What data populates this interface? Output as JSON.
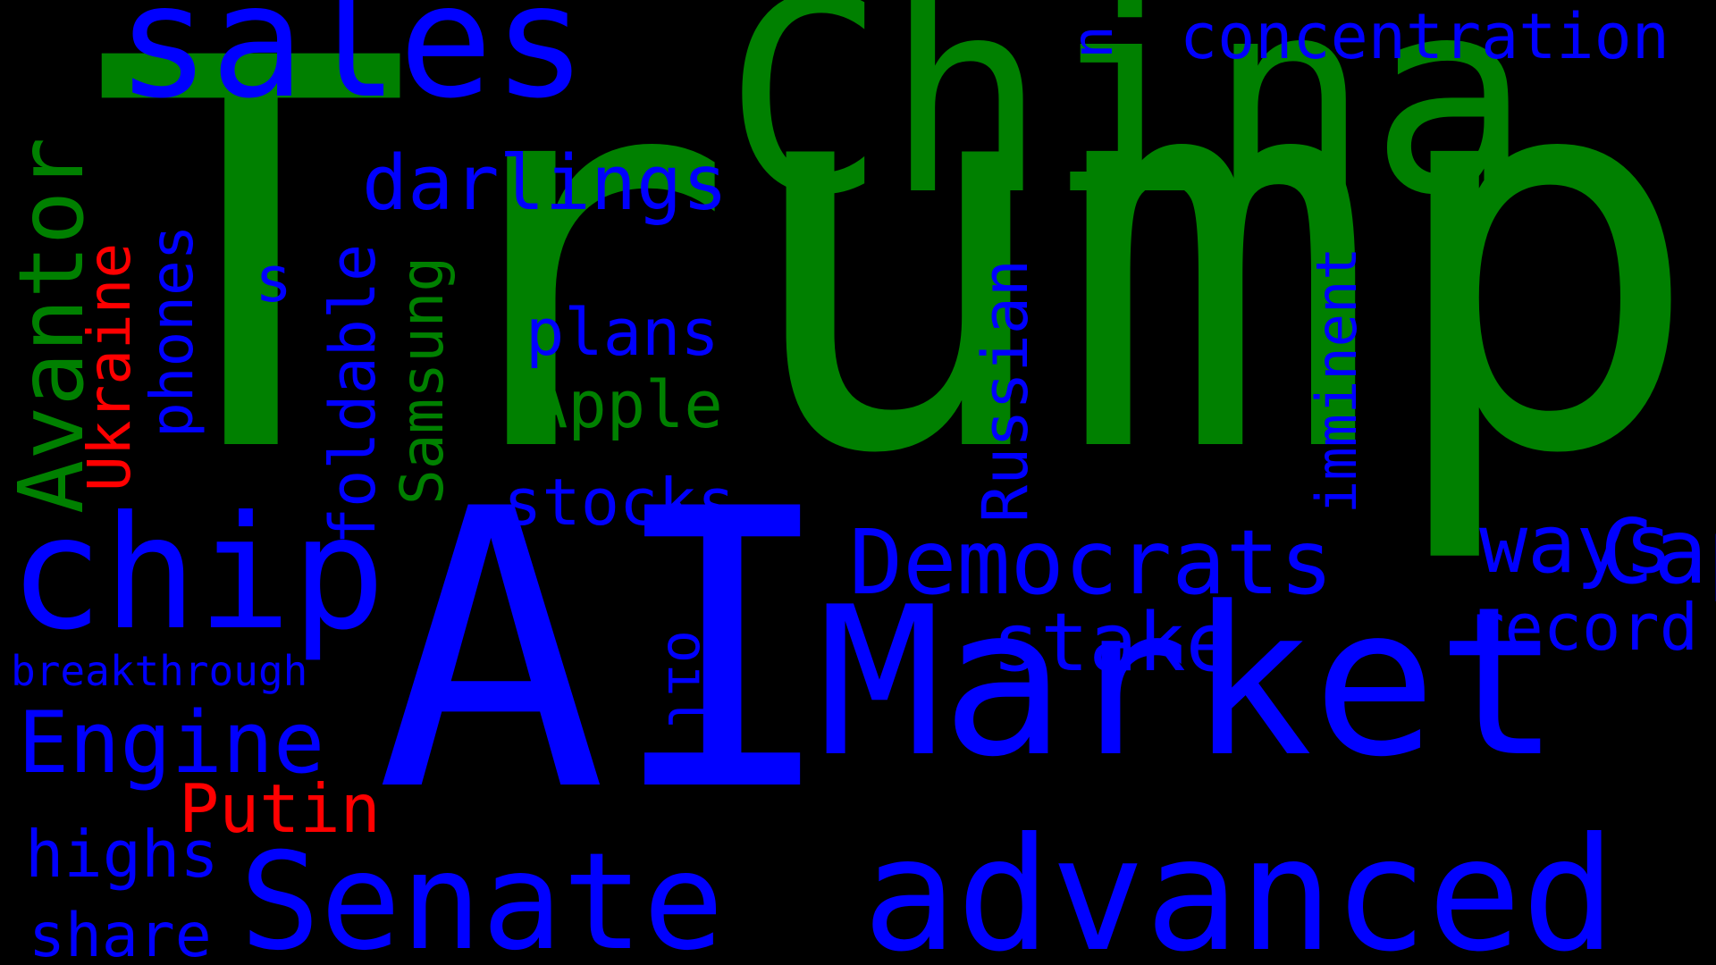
{
  "colors": {
    "background": "#000000",
    "green": "#008000",
    "blue": "#0000ff",
    "red": "#ff0000"
  },
  "words": {
    "trump": "Trump",
    "china": "China",
    "ai": "AI",
    "market": "Market",
    "sales": "sales",
    "chip": "chip",
    "advanced": "advanced",
    "senate": "Senate",
    "democrats": "Democrats",
    "capital": "Capital",
    "avantor": "Avantor",
    "engine": "Engine",
    "darlings": "darlings",
    "concentration": "concentration",
    "ways": "ways",
    "stake": "stake",
    "record": "record",
    "plans": "plans",
    "apple": "Apple",
    "stocks": "stocks",
    "russian": "Russian",
    "imminent": "imminent",
    "samsung": "Samsung",
    "foldable": "foldable",
    "phones": "phones",
    "ukraine": "Ukraine",
    "putin": "Putin",
    "highs": "highs",
    "share": "share",
    "breakthrough": "breakthrough",
    "oil": "oil",
    "s": "s",
    "u": "u"
  }
}
